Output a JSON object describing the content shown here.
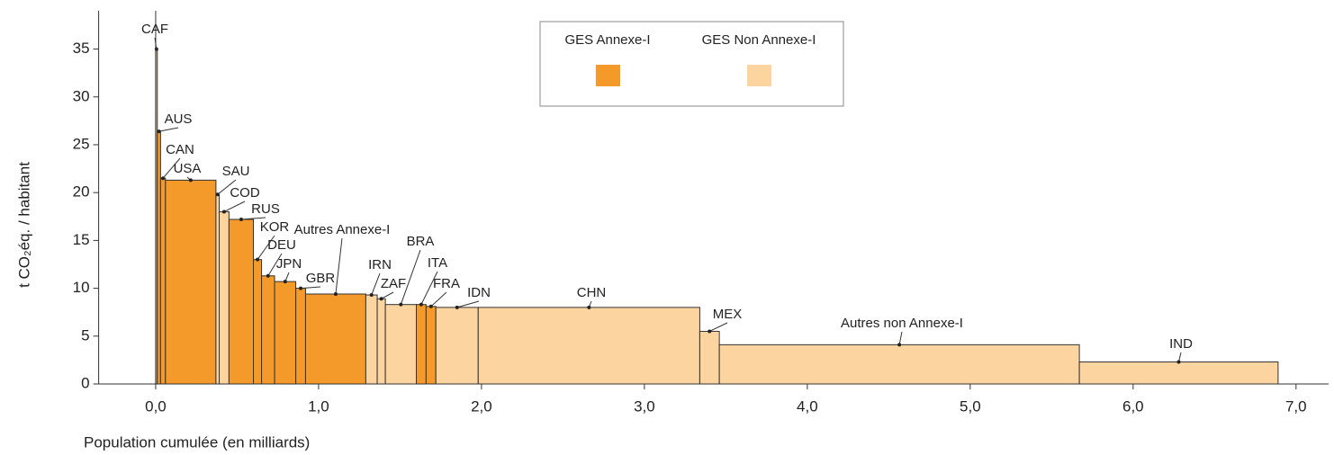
{
  "chart_data": {
    "type": "variable-width-bar",
    "y_label": "t CO₂éq. / habitant",
    "x_label": "Population cumulée (en milliards)",
    "series": [
      {
        "name": "GES Annexe-I",
        "color": "#f39a2b"
      },
      {
        "name": "GES Non Annexe-I",
        "color": "#fbd4a0"
      }
    ],
    "categories": [
      "CAF",
      "AUS",
      "CAN",
      "USA",
      "SAU",
      "COD",
      "RUS",
      "KOR",
      "DEU",
      "JPN",
      "GBR",
      "Autres Annexe-I",
      "IRN",
      "ZAF",
      "BRA",
      "ITA",
      "FRA",
      "IDN",
      "CHN",
      "MEX",
      "Autres non Annexe-I",
      "IND"
    ],
    "group": [
      1,
      0,
      0,
      0,
      1,
      1,
      0,
      0,
      0,
      0,
      0,
      0,
      1,
      1,
      1,
      0,
      0,
      1,
      1,
      1,
      1,
      1
    ],
    "widths": [
      0.01,
      0.02,
      0.03,
      0.31,
      0.02,
      0.06,
      0.15,
      0.05,
      0.08,
      0.13,
      0.06,
      0.37,
      0.07,
      0.05,
      0.19,
      0.06,
      0.06,
      0.26,
      1.36,
      0.12,
      2.21,
      1.22
    ],
    "values": [
      35,
      26.4,
      21.5,
      21.3,
      19.8,
      18,
      17.2,
      13,
      11.3,
      10.7,
      10,
      9.4,
      9.3,
      8.9,
      8.3,
      8.3,
      8.1,
      8,
      8,
      5.5,
      4.1,
      2.3
    ],
    "xlim": [
      -0.35,
      7.2
    ],
    "ylim": [
      0,
      39
    ],
    "xticks": [
      {
        "value": 0,
        "label": "0,0"
      },
      {
        "value": 1,
        "label": "1,0"
      },
      {
        "value": 2,
        "label": "2,0"
      },
      {
        "value": 3,
        "label": "3,0"
      },
      {
        "value": 4,
        "label": "4,0"
      },
      {
        "value": 5,
        "label": "5,0"
      },
      {
        "value": 6,
        "label": "6,0"
      },
      {
        "value": 7,
        "label": "7,0"
      }
    ],
    "yticks": [
      0,
      5,
      10,
      15,
      20,
      25,
      30,
      35
    ]
  }
}
